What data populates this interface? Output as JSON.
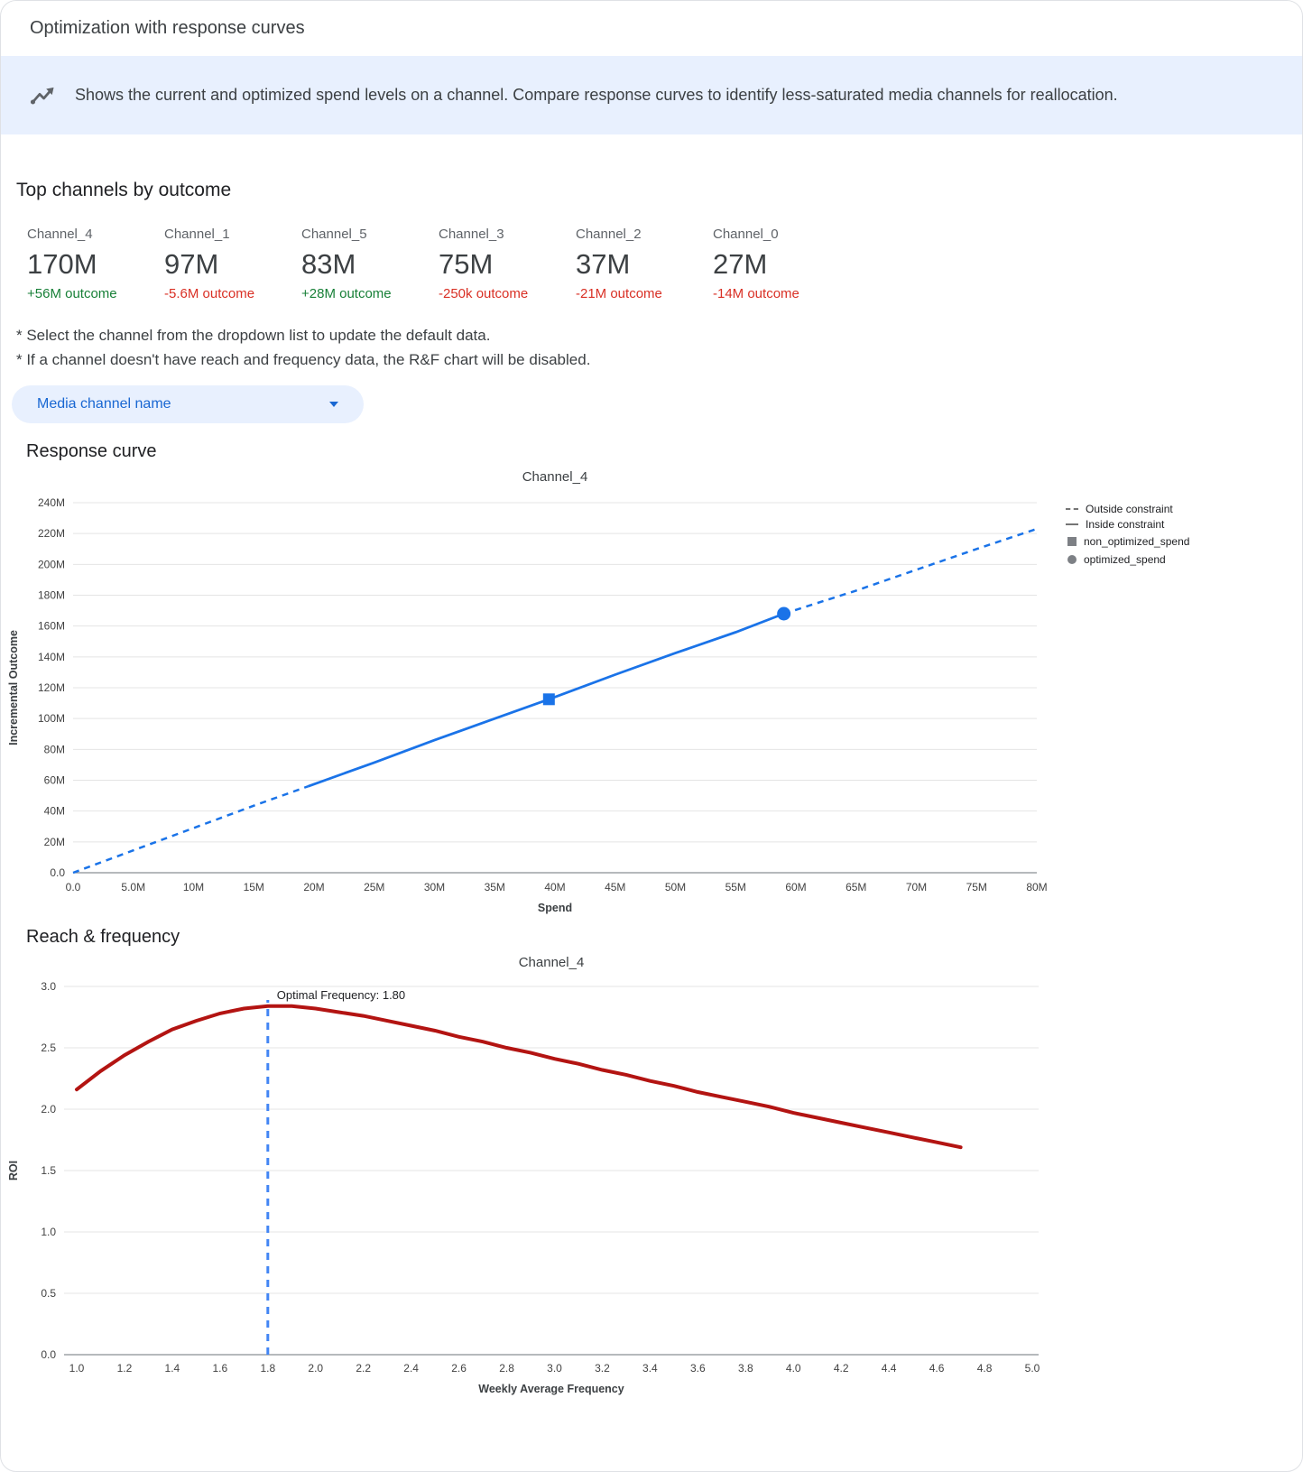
{
  "page": {
    "title": "Optimization with response curves",
    "banner_text": "Shows the current and optimized spend levels on a channel. Compare response curves to identify less-saturated media channels for reallocation."
  },
  "colors": {
    "accent_blue": "#1a73e8",
    "positive_green": "#188038",
    "negative_red": "#d93025",
    "banner_bg": "#e8f0fe"
  },
  "top_channels": {
    "heading": "Top channels by outcome",
    "cards": [
      {
        "name": "Channel_4",
        "value": "170M",
        "delta": "+56M outcome",
        "positive": true
      },
      {
        "name": "Channel_1",
        "value": "97M",
        "delta": "-5.6M outcome",
        "positive": false
      },
      {
        "name": "Channel_5",
        "value": "83M",
        "delta": "+28M outcome",
        "positive": true
      },
      {
        "name": "Channel_3",
        "value": "75M",
        "delta": "-250k outcome",
        "positive": false
      },
      {
        "name": "Channel_2",
        "value": "37M",
        "delta": "-21M outcome",
        "positive": false
      },
      {
        "name": "Channel_0",
        "value": "27M",
        "delta": "-14M outcome",
        "positive": false
      }
    ]
  },
  "notes": [
    "* Select the channel from the dropdown list to update the default data.",
    "* If a channel doesn't have reach and frequency data, the R&F chart will be disabled."
  ],
  "dropdown": {
    "label": "Media channel name"
  },
  "sections": {
    "response_curve": "Response curve",
    "reach_frequency": "Reach & frequency"
  },
  "chart_data": [
    {
      "type": "line",
      "title": "Channel_4",
      "xlabel": "Spend",
      "ylabel": "Incremental Outcome",
      "xlim_millions": [
        0,
        80
      ],
      "ylim_millions": [
        0,
        240
      ],
      "x_ticks": {
        "values_millions": [
          0,
          5,
          10,
          15,
          20,
          25,
          30,
          35,
          40,
          45,
          50,
          55,
          60,
          65,
          70,
          75,
          80
        ],
        "labels": [
          "0.0",
          "5.0M",
          "10M",
          "15M",
          "20M",
          "25M",
          "30M",
          "35M",
          "40M",
          "45M",
          "50M",
          "55M",
          "60M",
          "65M",
          "70M",
          "75M",
          "80M"
        ]
      },
      "y_ticks": {
        "values_millions": [
          0,
          20,
          40,
          60,
          80,
          100,
          120,
          140,
          160,
          180,
          200,
          220,
          240
        ],
        "labels": [
          "0.0",
          "20M",
          "40M",
          "60M",
          "80M",
          "100M",
          "120M",
          "140M",
          "160M",
          "180M",
          "200M",
          "220M",
          "240M"
        ]
      },
      "series": {
        "x_millions": [
          0,
          5,
          10,
          15,
          19.5,
          25,
          30,
          35,
          39.5,
          45,
          50,
          55,
          59,
          65,
          70,
          75,
          80
        ],
        "y_millions": [
          0,
          14.5,
          29,
          43.5,
          56,
          71.5,
          86,
          100,
          112.5,
          128.5,
          142.5,
          156,
          168,
          183,
          196.5,
          210,
          223
        ]
      },
      "constraint_range_millions": [
        19.5,
        59
      ],
      "markers": {
        "non_optimized_spend": {
          "x_millions": 39.5,
          "y_millions": 112.5
        },
        "optimized_spend": {
          "x_millions": 59,
          "y_millions": 168
        }
      },
      "legend": [
        "Outside constraint",
        "Inside constraint",
        "non_optimized_spend",
        "optimized_spend"
      ],
      "legend_position": "right",
      "grid": true,
      "line_color": "#1a73e8"
    },
    {
      "type": "line",
      "title": "Channel_4",
      "xlabel": "Weekly Average Frequency",
      "ylabel": "ROI",
      "xlim": [
        1.0,
        5.0
      ],
      "ylim": [
        0,
        3.0
      ],
      "x_ticks": {
        "values": [
          1.0,
          1.2,
          1.4,
          1.6,
          1.8,
          2.0,
          2.2,
          2.4,
          2.6,
          2.8,
          3.0,
          3.2,
          3.4,
          3.6,
          3.8,
          4.0,
          4.2,
          4.4,
          4.6,
          4.8,
          5.0
        ],
        "labels": [
          "1.0",
          "1.2",
          "1.4",
          "1.6",
          "1.8",
          "2.0",
          "2.2",
          "2.4",
          "2.6",
          "2.8",
          "3.0",
          "3.2",
          "3.4",
          "3.6",
          "3.8",
          "4.0",
          "4.2",
          "4.4",
          "4.6",
          "4.8",
          "5.0"
        ]
      },
      "y_ticks": {
        "values": [
          0,
          0.5,
          1.0,
          1.5,
          2.0,
          2.5,
          3.0
        ],
        "labels": [
          "0.0",
          "0.5",
          "1.0",
          "1.5",
          "2.0",
          "2.5",
          "3.0"
        ]
      },
      "series": {
        "x": [
          1.0,
          1.1,
          1.2,
          1.3,
          1.4,
          1.5,
          1.6,
          1.7,
          1.8,
          1.9,
          2.0,
          2.1,
          2.2,
          2.3,
          2.4,
          2.5,
          2.6,
          2.7,
          2.8,
          2.9,
          3.0,
          3.1,
          3.2,
          3.3,
          3.4,
          3.5,
          3.6,
          3.7,
          3.8,
          3.9,
          4.0,
          4.1,
          4.2,
          4.3,
          4.4,
          4.5,
          4.6,
          4.7
        ],
        "y": [
          2.16,
          2.31,
          2.44,
          2.55,
          2.65,
          2.72,
          2.78,
          2.82,
          2.84,
          2.84,
          2.82,
          2.79,
          2.76,
          2.72,
          2.68,
          2.64,
          2.59,
          2.55,
          2.5,
          2.46,
          2.41,
          2.37,
          2.32,
          2.28,
          2.23,
          2.19,
          2.14,
          2.1,
          2.06,
          2.02,
          1.97,
          1.93,
          1.89,
          1.85,
          1.81,
          1.77,
          1.73,
          1.69
        ]
      },
      "optimal_frequency": 1.8,
      "annotation": "Optimal Frequency: 1.80",
      "grid": true,
      "line_color": "#b31412",
      "vline_color": "#4285f4"
    }
  ]
}
